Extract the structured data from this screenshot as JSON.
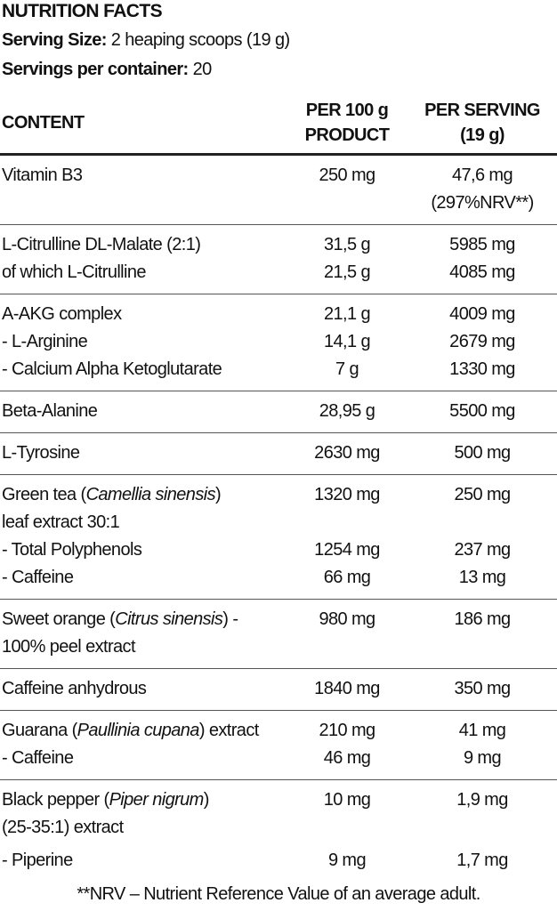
{
  "header": {
    "title": "NUTRITION FACTS",
    "serving_size": {
      "label": "Serving Size:",
      "value": "2 heaping scoops (19 g)"
    },
    "servings_per_container": {
      "label": "Servings per container:",
      "value": "20"
    }
  },
  "table": {
    "columns": [
      [
        "CONTENT"
      ],
      [
        "PER 100 g",
        "PRODUCT"
      ],
      [
        "PER SERVING",
        "(19 g)"
      ]
    ],
    "groups": [
      [
        {
          "name": "Vitamin B3",
          "per_100g": "250 mg",
          "per_serving": "47,6 mg"
        },
        {
          "per_serving": "(297%NRV**)"
        }
      ],
      [
        {
          "name": "L-Citrulline DL-Malate (2:1)",
          "per_100g": "31,5 g",
          "per_serving": "5985 mg"
        },
        {
          "name": "of which L-Citrulline",
          "per_100g": "21,5 g",
          "per_serving": "4085 mg"
        }
      ],
      [
        {
          "name": "A-AKG complex",
          "per_100g": "21,1 g",
          "per_serving": "4009 mg"
        },
        {
          "name": "- L-Arginine",
          "per_100g": "14,1 g",
          "per_serving": "2679 mg"
        },
        {
          "name": "- Calcium Alpha Ketoglutarate",
          "per_100g": "7 g",
          "per_serving": "1330 mg"
        }
      ],
      [
        {
          "name": "Beta-Alanine",
          "per_100g": "28,95 g",
          "per_serving": "5500 mg"
        }
      ],
      [
        {
          "name": "L-Tyrosine",
          "per_100g": "2630 mg",
          "per_serving": "500 mg"
        }
      ],
      [
        {
          "name": [
            {
              "text": "Green tea ("
            },
            {
              "text": "Camellia sinensis",
              "italic": true
            },
            {
              "text": ")"
            }
          ],
          "per_100g": "1320 mg",
          "per_serving": "250 mg"
        },
        {
          "name": "leaf extract 30:1"
        },
        {
          "name": "- Total Polyphenols",
          "per_100g": "1254 mg",
          "per_serving": "237 mg"
        },
        {
          "name": "- Caffeine",
          "per_100g": "66 mg",
          "per_serving": "13 mg"
        }
      ],
      [
        {
          "name": [
            {
              "text": "Sweet orange ("
            },
            {
              "text": "Citrus sinensis",
              "italic": true
            },
            {
              "text": ") -"
            }
          ],
          "per_100g": "980 mg",
          "per_serving": "186 mg"
        },
        {
          "name": "100% peel extract"
        }
      ],
      [
        {
          "name": "Caffeine anhydrous",
          "per_100g": "1840 mg",
          "per_serving": "350 mg"
        }
      ],
      [
        {
          "name": [
            {
              "text": "Guarana ("
            },
            {
              "text": "Paullinia cupana",
              "italic": true
            },
            {
              "text": ") extract"
            }
          ],
          "per_100g": "210 mg",
          "per_serving": "41 mg"
        },
        {
          "name": "- Caffeine",
          "per_100g": "46 mg",
          "per_serving": "9 mg"
        }
      ],
      [
        {
          "name": [
            {
              "text": "Black pepper ("
            },
            {
              "text": "Piper nigrum",
              "italic": true
            },
            {
              "text": ")"
            }
          ],
          "per_100g": "10 mg",
          "per_serving": "1,9 mg"
        },
        {
          "name": "(25-35:1) extract"
        },
        {
          "name": "- Piperine",
          "per_100g": "9 mg",
          "per_serving": "1,7 mg"
        }
      ]
    ]
  },
  "footnote": "**NRV – Nutrient Reference Value of an average adult."
}
